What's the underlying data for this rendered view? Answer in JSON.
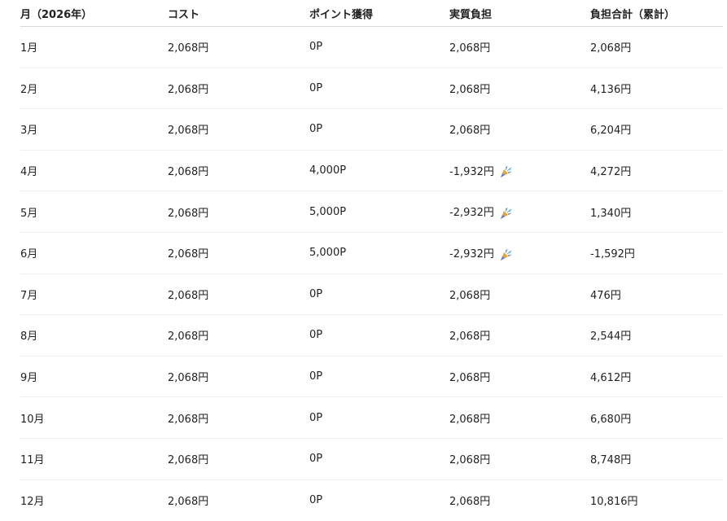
{
  "table": {
    "headers": [
      "月（2026年）",
      "コスト",
      "ポイント獲得",
      "実質負担",
      "負担合計（累計）"
    ],
    "rows": [
      {
        "month": "1月",
        "cost": "2,068円",
        "points": "0P",
        "net": "2,068円",
        "celebrate": false,
        "total": "2,068円"
      },
      {
        "month": "2月",
        "cost": "2,068円",
        "points": "0P",
        "net": "2,068円",
        "celebrate": false,
        "total": "4,136円"
      },
      {
        "month": "3月",
        "cost": "2,068円",
        "points": "0P",
        "net": "2,068円",
        "celebrate": false,
        "total": "6,204円"
      },
      {
        "month": "4月",
        "cost": "2,068円",
        "points": "4,000P",
        "net": "-1,932円",
        "celebrate": true,
        "total": "4,272円"
      },
      {
        "month": "5月",
        "cost": "2,068円",
        "points": "5,000P",
        "net": "-2,932円",
        "celebrate": true,
        "total": "1,340円"
      },
      {
        "month": "6月",
        "cost": "2,068円",
        "points": "5,000P",
        "net": "-2,932円",
        "celebrate": true,
        "total": "-1,592円"
      },
      {
        "month": "7月",
        "cost": "2,068円",
        "points": "0P",
        "net": "2,068円",
        "celebrate": false,
        "total": "476円"
      },
      {
        "month": "8月",
        "cost": "2,068円",
        "points": "0P",
        "net": "2,068円",
        "celebrate": false,
        "total": "2,544円"
      },
      {
        "month": "9月",
        "cost": "2,068円",
        "points": "0P",
        "net": "2,068円",
        "celebrate": false,
        "total": "4,612円"
      },
      {
        "month": "10月",
        "cost": "2,068円",
        "points": "0P",
        "net": "2,068円",
        "celebrate": false,
        "total": "6,680円"
      },
      {
        "month": "11月",
        "cost": "2,068円",
        "points": "0P",
        "net": "2,068円",
        "celebrate": false,
        "total": "8,748円"
      },
      {
        "month": "12月",
        "cost": "2,068円",
        "points": "0P",
        "net": "2,068円",
        "celebrate": false,
        "total": "10,816円"
      }
    ],
    "celebrate_icon": "party-popper-icon"
  }
}
